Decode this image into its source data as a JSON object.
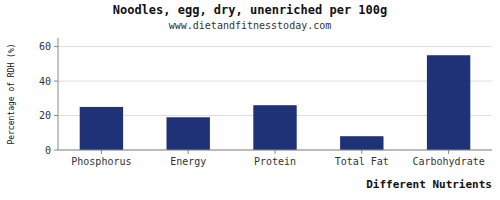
{
  "chart_data": {
    "type": "bar",
    "title": "Noodles, egg, dry, unenriched per 100g",
    "subtitle": "www.dietandfitnesstoday.com",
    "xlabel": "Different Nutrients",
    "ylabel": "Percentage of RDH (%)",
    "categories": [
      "Phosphorus",
      "Energy",
      "Protein",
      "Total Fat",
      "Carbohydrate"
    ],
    "values": [
      25,
      19,
      26,
      8,
      55
    ],
    "color": "#1f3278",
    "ylim": [
      0,
      65
    ],
    "yticks": [
      0,
      20,
      40,
      60
    ],
    "grid": true
  }
}
